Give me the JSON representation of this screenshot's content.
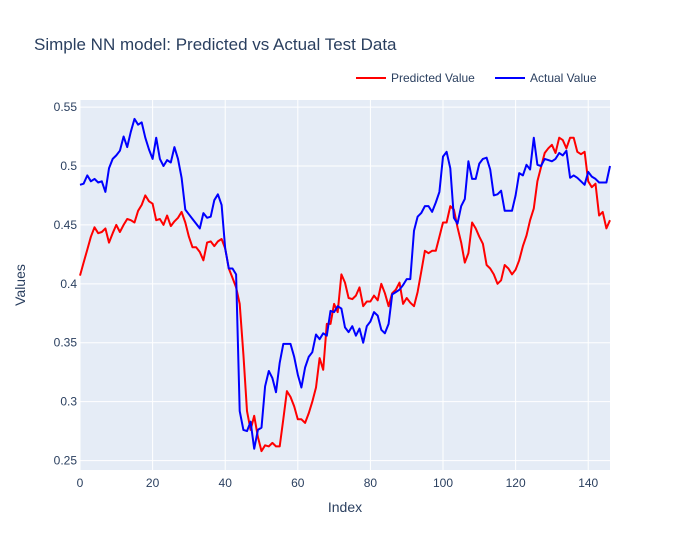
{
  "chart_data": {
    "type": "line",
    "title": "Simple NN model: Predicted vs Actual Test Data",
    "xlabel": "Index",
    "ylabel": "Values",
    "xlim": [
      0,
      146
    ],
    "ylim": [
      0.242,
      0.556
    ],
    "xticks": [
      0,
      20,
      40,
      60,
      80,
      100,
      120,
      140
    ],
    "yticks": [
      0.25,
      0.3,
      0.35,
      0.4,
      0.45,
      0.5,
      0.55
    ],
    "ytick_labels": [
      "0.25",
      "0.3",
      "0.35",
      "0.4",
      "0.45",
      "0.5",
      "0.55"
    ],
    "grid": true,
    "legend_position": "top-right",
    "background_color": "#e5ecf6",
    "series": [
      {
        "name": "Predicted Value",
        "color": "#ff0000",
        "points": [
          [
            0,
            0.407
          ],
          [
            1,
            0.418
          ],
          [
            2,
            0.429
          ],
          [
            3,
            0.44
          ],
          [
            4,
            0.448
          ],
          [
            5,
            0.443
          ],
          [
            6,
            0.444
          ],
          [
            7,
            0.447
          ],
          [
            8,
            0.435
          ],
          [
            9,
            0.443
          ],
          [
            10,
            0.45
          ],
          [
            11,
            0.444
          ],
          [
            12,
            0.45
          ],
          [
            13,
            0.455
          ],
          [
            14,
            0.454
          ],
          [
            15,
            0.452
          ],
          [
            16,
            0.462
          ],
          [
            17,
            0.467
          ],
          [
            18,
            0.475
          ],
          [
            19,
            0.47
          ],
          [
            20,
            0.468
          ],
          [
            21,
            0.454
          ],
          [
            22,
            0.455
          ],
          [
            23,
            0.45
          ],
          [
            24,
            0.458
          ],
          [
            25,
            0.449
          ],
          [
            26,
            0.453
          ],
          [
            27,
            0.456
          ],
          [
            28,
            0.461
          ],
          [
            29,
            0.452
          ],
          [
            30,
            0.44
          ],
          [
            31,
            0.431
          ],
          [
            32,
            0.431
          ],
          [
            33,
            0.427
          ],
          [
            34,
            0.42
          ],
          [
            35,
            0.435
          ],
          [
            36,
            0.436
          ],
          [
            37,
            0.432
          ],
          [
            38,
            0.436
          ],
          [
            39,
            0.438
          ],
          [
            40,
            0.43
          ],
          [
            41,
            0.413
          ],
          [
            42,
            0.405
          ],
          [
            43,
            0.397
          ],
          [
            44,
            0.383
          ],
          [
            45,
            0.34
          ],
          [
            46,
            0.292
          ],
          [
            47,
            0.276
          ],
          [
            48,
            0.288
          ],
          [
            49,
            0.27
          ],
          [
            50,
            0.258
          ],
          [
            51,
            0.263
          ],
          [
            52,
            0.262
          ],
          [
            53,
            0.265
          ],
          [
            54,
            0.262
          ],
          [
            55,
            0.262
          ],
          [
            56,
            0.285
          ],
          [
            57,
            0.309
          ],
          [
            58,
            0.304
          ],
          [
            59,
            0.296
          ],
          [
            60,
            0.285
          ],
          [
            61,
            0.285
          ],
          [
            62,
            0.282
          ],
          [
            63,
            0.29
          ],
          [
            64,
            0.3
          ],
          [
            65,
            0.312
          ],
          [
            66,
            0.337
          ],
          [
            67,
            0.327
          ],
          [
            68,
            0.366
          ],
          [
            69,
            0.366
          ],
          [
            70,
            0.383
          ],
          [
            71,
            0.376
          ],
          [
            72,
            0.408
          ],
          [
            73,
            0.401
          ],
          [
            74,
            0.388
          ],
          [
            75,
            0.387
          ],
          [
            76,
            0.39
          ],
          [
            77,
            0.397
          ],
          [
            78,
            0.381
          ],
          [
            79,
            0.385
          ],
          [
            80,
            0.385
          ],
          [
            81,
            0.39
          ],
          [
            82,
            0.386
          ],
          [
            83,
            0.4
          ],
          [
            84,
            0.392
          ],
          [
            85,
            0.381
          ],
          [
            86,
            0.392
          ],
          [
            87,
            0.395
          ],
          [
            88,
            0.401
          ],
          [
            89,
            0.383
          ],
          [
            90,
            0.388
          ],
          [
            91,
            0.384
          ],
          [
            92,
            0.381
          ],
          [
            93,
            0.393
          ],
          [
            94,
            0.41
          ],
          [
            95,
            0.428
          ],
          [
            96,
            0.426
          ],
          [
            97,
            0.428
          ],
          [
            98,
            0.428
          ],
          [
            99,
            0.44
          ],
          [
            100,
            0.452
          ],
          [
            101,
            0.452
          ],
          [
            102,
            0.466
          ],
          [
            103,
            0.463
          ],
          [
            104,
            0.448
          ],
          [
            105,
            0.435
          ],
          [
            106,
            0.418
          ],
          [
            107,
            0.426
          ],
          [
            108,
            0.452
          ],
          [
            109,
            0.447
          ],
          [
            110,
            0.44
          ],
          [
            111,
            0.434
          ],
          [
            112,
            0.416
          ],
          [
            113,
            0.413
          ],
          [
            114,
            0.408
          ],
          [
            115,
            0.4
          ],
          [
            116,
            0.403
          ],
          [
            117,
            0.416
          ],
          [
            118,
            0.413
          ],
          [
            119,
            0.408
          ],
          [
            120,
            0.412
          ],
          [
            121,
            0.42
          ],
          [
            122,
            0.432
          ],
          [
            123,
            0.441
          ],
          [
            124,
            0.454
          ],
          [
            125,
            0.464
          ],
          [
            126,
            0.487
          ],
          [
            127,
            0.499
          ],
          [
            128,
            0.511
          ],
          [
            129,
            0.515
          ],
          [
            130,
            0.518
          ],
          [
            131,
            0.511
          ],
          [
            132,
            0.524
          ],
          [
            133,
            0.522
          ],
          [
            134,
            0.515
          ],
          [
            135,
            0.524
          ],
          [
            136,
            0.524
          ],
          [
            137,
            0.512
          ],
          [
            138,
            0.51
          ],
          [
            139,
            0.512
          ],
          [
            140,
            0.487
          ],
          [
            141,
            0.482
          ],
          [
            142,
            0.485
          ],
          [
            143,
            0.458
          ],
          [
            144,
            0.461
          ],
          [
            145,
            0.447
          ],
          [
            146,
            0.454
          ]
        ]
      },
      {
        "name": "Actual Value",
        "color": "#0000ff",
        "points": [
          [
            0,
            0.484
          ],
          [
            1,
            0.485
          ],
          [
            2,
            0.492
          ],
          [
            3,
            0.487
          ],
          [
            4,
            0.489
          ],
          [
            5,
            0.486
          ],
          [
            6,
            0.487
          ],
          [
            7,
            0.478
          ],
          [
            8,
            0.498
          ],
          [
            9,
            0.506
          ],
          [
            10,
            0.509
          ],
          [
            11,
            0.513
          ],
          [
            12,
            0.525
          ],
          [
            13,
            0.516
          ],
          [
            14,
            0.529
          ],
          [
            15,
            0.54
          ],
          [
            16,
            0.535
          ],
          [
            17,
            0.537
          ],
          [
            18,
            0.524
          ],
          [
            19,
            0.514
          ],
          [
            20,
            0.506
          ],
          [
            21,
            0.524
          ],
          [
            22,
            0.506
          ],
          [
            23,
            0.5
          ],
          [
            24,
            0.505
          ],
          [
            25,
            0.503
          ],
          [
            26,
            0.516
          ],
          [
            27,
            0.506
          ],
          [
            28,
            0.49
          ],
          [
            29,
            0.463
          ],
          [
            30,
            0.459
          ],
          [
            31,
            0.455
          ],
          [
            32,
            0.451
          ],
          [
            33,
            0.447
          ],
          [
            34,
            0.46
          ],
          [
            35,
            0.456
          ],
          [
            36,
            0.457
          ],
          [
            37,
            0.471
          ],
          [
            38,
            0.476
          ],
          [
            39,
            0.467
          ],
          [
            40,
            0.43
          ],
          [
            41,
            0.413
          ],
          [
            42,
            0.413
          ],
          [
            43,
            0.408
          ],
          [
            44,
            0.292
          ],
          [
            45,
            0.276
          ],
          [
            46,
            0.275
          ],
          [
            47,
            0.283
          ],
          [
            48,
            0.26
          ],
          [
            49,
            0.276
          ],
          [
            50,
            0.278
          ],
          [
            51,
            0.313
          ],
          [
            52,
            0.326
          ],
          [
            53,
            0.32
          ],
          [
            54,
            0.308
          ],
          [
            55,
            0.333
          ],
          [
            56,
            0.349
          ],
          [
            57,
            0.349
          ],
          [
            58,
            0.349
          ],
          [
            59,
            0.338
          ],
          [
            60,
            0.323
          ],
          [
            61,
            0.312
          ],
          [
            62,
            0.329
          ],
          [
            63,
            0.338
          ],
          [
            64,
            0.342
          ],
          [
            65,
            0.357
          ],
          [
            66,
            0.353
          ],
          [
            67,
            0.358
          ],
          [
            68,
            0.356
          ],
          [
            69,
            0.377
          ],
          [
            70,
            0.376
          ],
          [
            71,
            0.381
          ],
          [
            72,
            0.379
          ],
          [
            73,
            0.363
          ],
          [
            74,
            0.359
          ],
          [
            75,
            0.364
          ],
          [
            76,
            0.356
          ],
          [
            77,
            0.362
          ],
          [
            78,
            0.35
          ],
          [
            79,
            0.364
          ],
          [
            80,
            0.368
          ],
          [
            81,
            0.376
          ],
          [
            82,
            0.373
          ],
          [
            83,
            0.361
          ],
          [
            84,
            0.358
          ],
          [
            85,
            0.366
          ],
          [
            86,
            0.391
          ],
          [
            87,
            0.393
          ],
          [
            88,
            0.395
          ],
          [
            89,
            0.399
          ],
          [
            90,
            0.404
          ],
          [
            91,
            0.404
          ],
          [
            92,
            0.445
          ],
          [
            93,
            0.457
          ],
          [
            94,
            0.46
          ],
          [
            95,
            0.466
          ],
          [
            96,
            0.466
          ],
          [
            97,
            0.461
          ],
          [
            98,
            0.469
          ],
          [
            99,
            0.478
          ],
          [
            100,
            0.508
          ],
          [
            101,
            0.512
          ],
          [
            102,
            0.498
          ],
          [
            103,
            0.456
          ],
          [
            104,
            0.451
          ],
          [
            105,
            0.466
          ],
          [
            106,
            0.472
          ],
          [
            107,
            0.504
          ],
          [
            108,
            0.489
          ],
          [
            109,
            0.489
          ],
          [
            110,
            0.502
          ],
          [
            111,
            0.506
          ],
          [
            112,
            0.507
          ],
          [
            113,
            0.497
          ],
          [
            114,
            0.475
          ],
          [
            115,
            0.476
          ],
          [
            116,
            0.479
          ],
          [
            117,
            0.462
          ],
          [
            118,
            0.462
          ],
          [
            119,
            0.462
          ],
          [
            120,
            0.475
          ],
          [
            121,
            0.494
          ],
          [
            122,
            0.492
          ],
          [
            123,
            0.501
          ],
          [
            124,
            0.497
          ],
          [
            125,
            0.524
          ],
          [
            126,
            0.501
          ],
          [
            127,
            0.5
          ],
          [
            128,
            0.506
          ],
          [
            129,
            0.505
          ],
          [
            130,
            0.504
          ],
          [
            131,
            0.506
          ],
          [
            132,
            0.511
          ],
          [
            133,
            0.509
          ],
          [
            134,
            0.513
          ],
          [
            135,
            0.49
          ],
          [
            136,
            0.492
          ],
          [
            137,
            0.49
          ],
          [
            138,
            0.487
          ],
          [
            139,
            0.484
          ],
          [
            140,
            0.495
          ],
          [
            141,
            0.491
          ],
          [
            142,
            0.489
          ],
          [
            143,
            0.486
          ],
          [
            144,
            0.486
          ],
          [
            145,
            0.486
          ],
          [
            146,
            0.5
          ]
        ]
      }
    ]
  }
}
